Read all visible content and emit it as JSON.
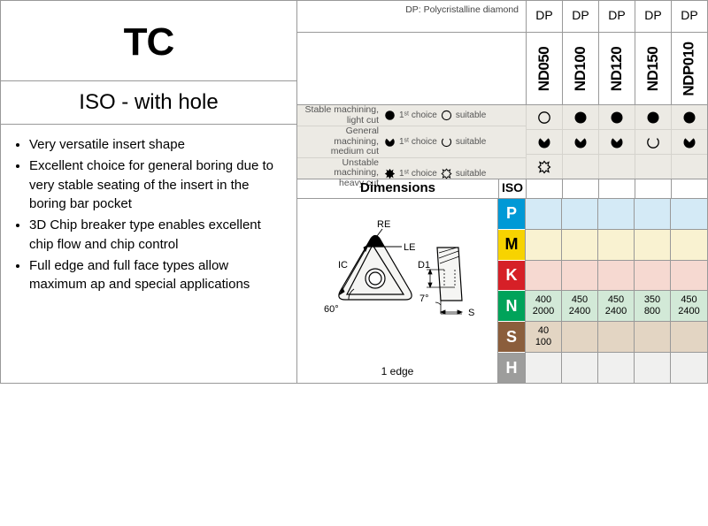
{
  "title": "TC",
  "subtitle": "ISO - with hole",
  "dp_header_note": "DP: Polycristalline diamond",
  "dp_label": "DP",
  "grades": [
    "ND050",
    "ND100",
    "ND120",
    "ND150",
    "NDP010"
  ],
  "bullets": [
    "Very versatile insert shape",
    "Excellent choice for general boring due to very stable seating of the insert in the boring bar pocket",
    "3D Chip breaker type enables excellent chip flow and chip control",
    "Full edge and full face types allow maximum ap and special applications"
  ],
  "machining": {
    "rows": [
      {
        "label": "Stable machining, light cut",
        "icon_first": "circle-filled",
        "icon_suit": "circle-outline"
      },
      {
        "label": "General machining, medium cut",
        "icon_first": "pac-filled",
        "icon_suit": "pac-outline"
      },
      {
        "label": "Unstable machining, heavy cut",
        "icon_first": "cross-filled",
        "icon_suit": "cross-outline"
      }
    ],
    "legend_first": "1ˢᵗ choice",
    "legend_suitable": "suitable"
  },
  "machining_matrix": [
    [
      "circle-outline",
      "circle-filled",
      "circle-filled",
      "circle-filled",
      "circle-filled"
    ],
    [
      "pac-filled",
      "pac-filled",
      "pac-filled",
      "pac-outline",
      "pac-filled"
    ],
    [
      "cross-outline",
      "",
      "",
      "",
      ""
    ]
  ],
  "dim_label": "Dimensions",
  "iso_label": "ISO",
  "edge_note": "1 edge",
  "iso_letters": [
    "P",
    "M",
    "K",
    "N",
    "S",
    "H"
  ],
  "iso_data": {
    "N": [
      {
        "lo": "400",
        "hi": "2000"
      },
      {
        "lo": "450",
        "hi": "2400"
      },
      {
        "lo": "450",
        "hi": "2400"
      },
      {
        "lo": "350",
        "hi": "800"
      },
      {
        "lo": "450",
        "hi": "2400"
      }
    ],
    "S": [
      {
        "lo": "40",
        "hi": "100"
      },
      null,
      null,
      null,
      null
    ]
  },
  "diagram_labels": {
    "RE": "RE",
    "LE": "LE",
    "IC": "IC",
    "D1": "D1",
    "S": "S",
    "angle60": "60°",
    "angle7": "7°"
  },
  "colors": {
    "P": "#0099d6",
    "M": "#f7d300",
    "K": "#d62027",
    "N": "#00a35a",
    "S": "#8b5e3c",
    "H": "#9d9d9c"
  }
}
